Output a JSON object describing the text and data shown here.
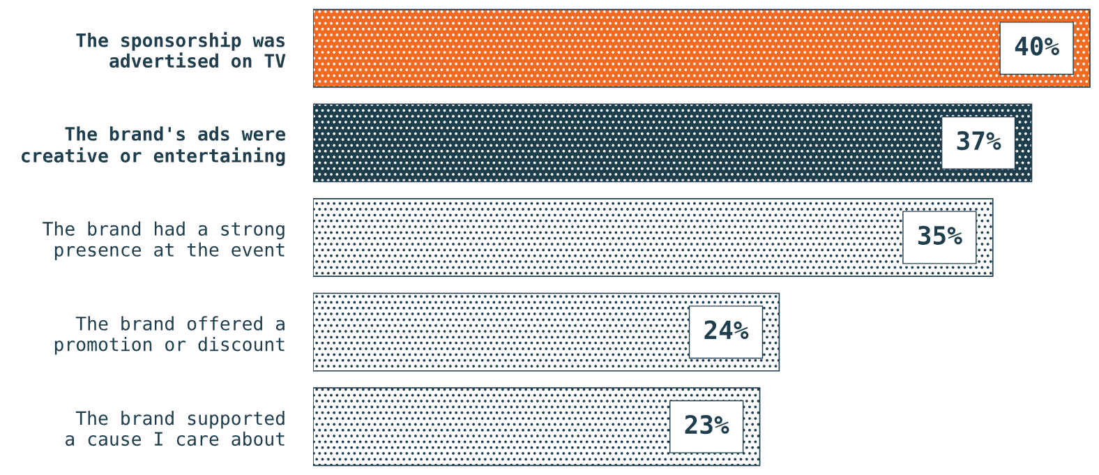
{
  "chart_data": {
    "type": "bar",
    "orientation": "horizontal",
    "categories": [
      "The sponsorship was\nadvertised on TV",
      "The brand's ads were\ncreative or entertaining",
      "The brand had a strong\npresence at the event",
      "The brand offered a\npromotion or discount",
      "The brand supported\na cause I care about"
    ],
    "values": [
      40,
      37,
      35,
      24,
      23
    ],
    "colors": [
      "#f26a21",
      "#1f3e4d",
      "#ffffff",
      "#ffffff",
      "#ffffff"
    ],
    "value_labels": [
      "40%",
      "37%",
      "35%",
      "24%",
      "23%"
    ],
    "tick_labels": "y",
    "grid": false,
    "legend": false
  }
}
